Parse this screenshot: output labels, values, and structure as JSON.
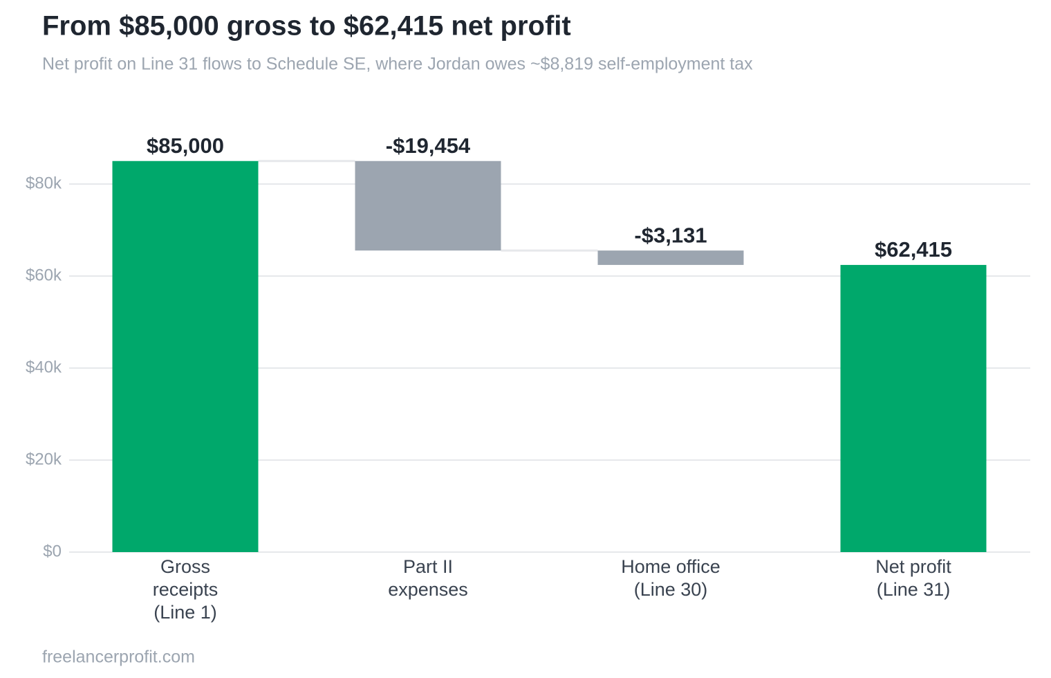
{
  "chart_data": {
    "type": "waterfall",
    "title": "From $85,000 gross to $62,415 net profit",
    "subtitle": "Net profit on Line 31 flows to Schedule SE, where Jordan owes ~$8,819 self-employment tax",
    "source": "freelancerprofit.com",
    "categories": [
      [
        "Gross",
        "receipts",
        "(Line 1)"
      ],
      [
        "Part II",
        "expenses"
      ],
      [
        "Home office",
        "(Line 30)"
      ],
      [
        "Net profit",
        "(Line 31)"
      ]
    ],
    "values": [
      85000,
      -19454,
      -3131,
      62415
    ],
    "value_labels": [
      "$85,000",
      "-$19,454",
      "-$3,131",
      "$62,415"
    ],
    "measures": [
      "absolute",
      "relative",
      "relative",
      "total"
    ],
    "total_color": "#00a86b",
    "decrease_color": "#9ca5b0",
    "ylim": [
      0,
      90000
    ],
    "yticks": [
      {
        "value": 0,
        "label": "$0"
      },
      {
        "value": 20000,
        "label": "$20k"
      },
      {
        "value": 40000,
        "label": "$40k"
      },
      {
        "value": 60000,
        "label": "$60k"
      },
      {
        "value": 80000,
        "label": "$80k"
      }
    ],
    "grid": true
  }
}
